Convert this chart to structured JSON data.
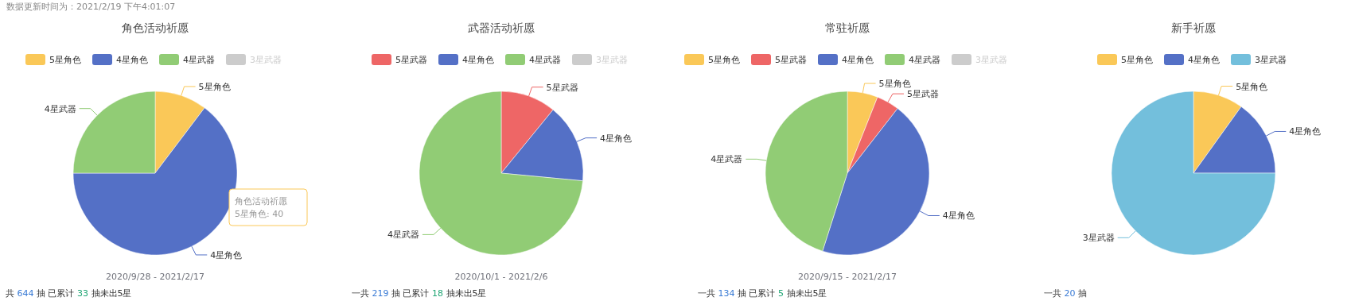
{
  "chart_data": [
    {
      "type": "pie",
      "title": "角色活动祈愿",
      "subtitle": "2020/9/28    -    2021/2/17",
      "legend": "top",
      "categories": [
        "5星角色",
        "4星角色",
        "4星武器",
        "3星武器"
      ],
      "values": [
        10.3,
        64.7,
        25.0,
        null
      ],
      "colors": [
        "#fac858",
        "#5470c6",
        "#91cc75",
        "#cccccc"
      ],
      "annotations": [
        "共 644 抽  已累计 33 抽未出5星",
        "角色活动祈愿\n5星角色: 40",
        "数据更新时间为：2021/2/19 下午4:01:07"
      ]
    },
    {
      "type": "pie",
      "title": "武器活动祈愿",
      "subtitle": "2020/10/1    -    2021/2/6",
      "legend": "top",
      "categories": [
        "5星武器",
        "4星角色",
        "4星武器",
        "3星武器"
      ],
      "values": [
        10.9,
        15.6,
        73.5,
        null
      ],
      "colors": [
        "#ee6666",
        "#5470c6",
        "#91cc75",
        "#cccccc"
      ],
      "annotations": [
        "一共 219 抽  已累计 18 抽未出5星"
      ]
    },
    {
      "type": "pie",
      "title": "常驻祈愿",
      "subtitle": "2020/9/15    -    2021/2/17",
      "legend": "top",
      "categories": [
        "5星角色",
        "5星武器",
        "4星角色",
        "4星武器",
        "3星武器"
      ],
      "values": [
        6.0,
        4.5,
        44.4,
        45.1,
        null
      ],
      "colors": [
        "#fac858",
        "#ee6666",
        "#5470c6",
        "#91cc75",
        "#cccccc"
      ],
      "annotations": [
        "一共 134 抽  已累计 5 抽未出5星"
      ]
    },
    {
      "type": "pie",
      "title": "新手祈愿",
      "legend": "top",
      "categories": [
        "5星角色",
        "4星角色",
        "3星武器"
      ],
      "values": [
        9.9,
        15.1,
        75.0
      ],
      "colors": [
        "#fac858",
        "#5470c6",
        "#73bfdc"
      ],
      "annotations": [
        "一共 20 抽"
      ]
    }
  ]
}
